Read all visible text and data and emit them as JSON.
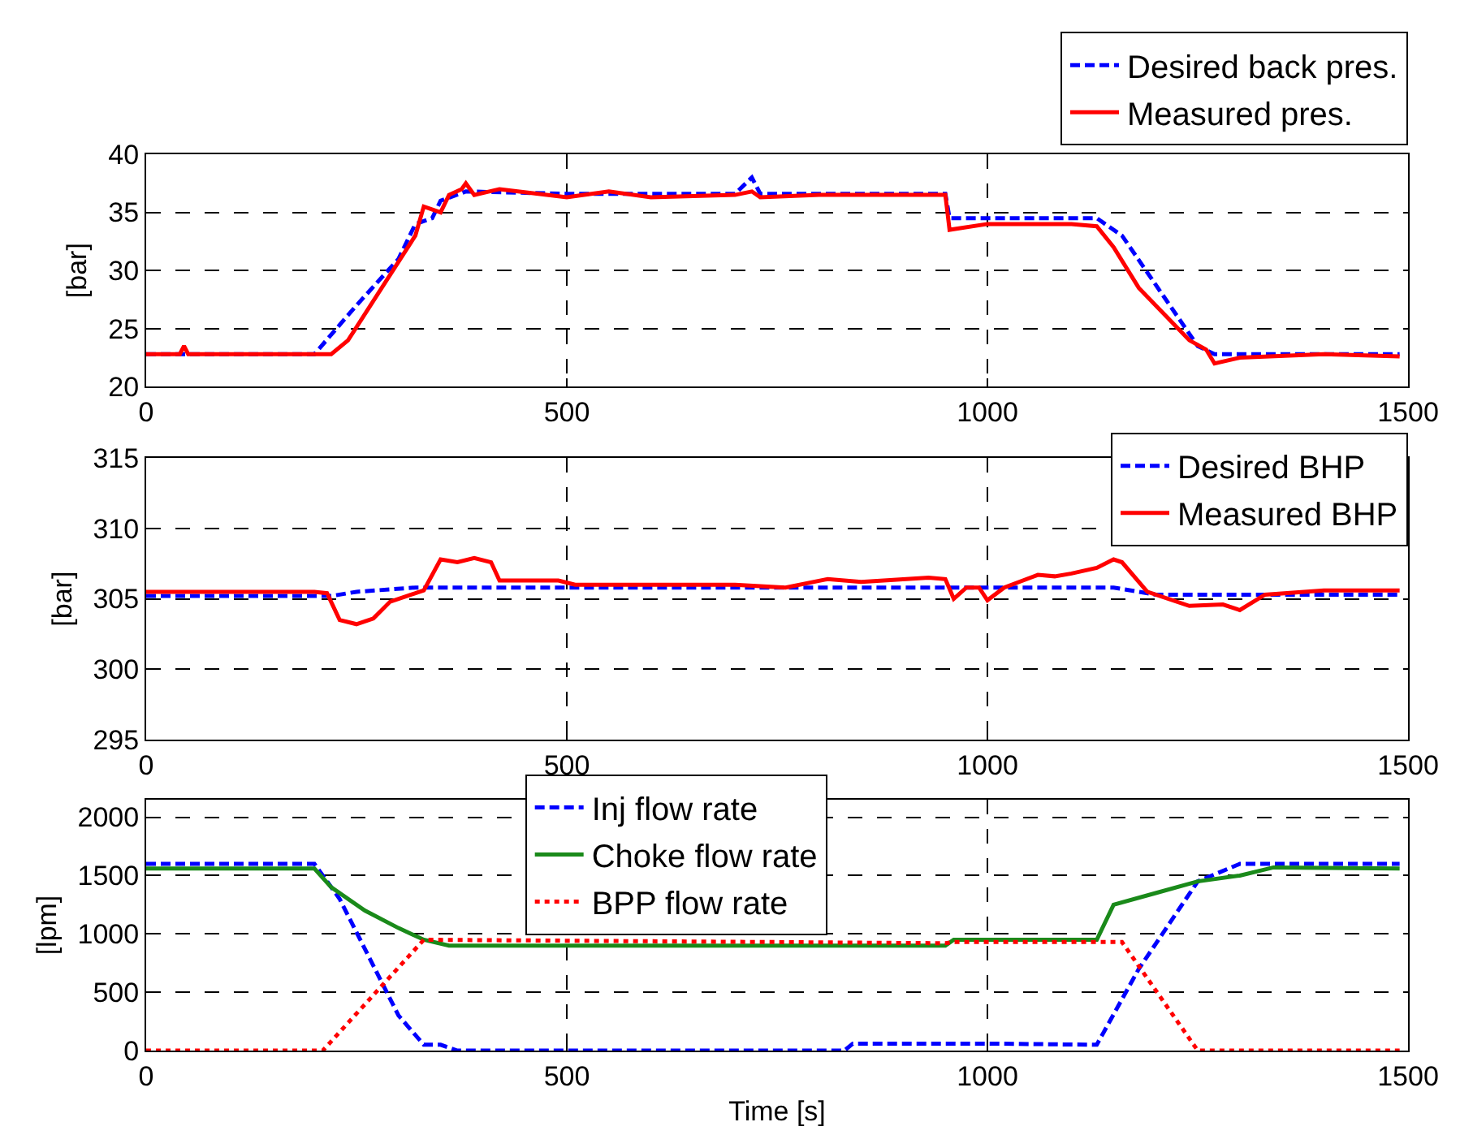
{
  "chart_data": [
    {
      "type": "line",
      "ylabel": "[bar]",
      "xlim": [
        0,
        1500
      ],
      "xticks": [
        0,
        500,
        1000,
        1500
      ],
      "ylim": [
        20,
        40
      ],
      "yticks": [
        20,
        25,
        30,
        35,
        40
      ],
      "grid": true,
      "legend": "top right",
      "marker": "none",
      "series": [
        {
          "name": "Desired back pres.",
          "color": "#0000ff",
          "line_style": "dashed",
          "x": [
            0,
            200,
            250,
            300,
            320,
            340,
            350,
            380,
            500,
            700,
            720,
            730,
            950,
            955,
            1130,
            1160,
            1250,
            1270,
            1490
          ],
          "values": [
            22.8,
            22.8,
            27,
            31,
            34,
            34.5,
            36,
            36.8,
            36.6,
            36.6,
            38,
            36.6,
            36.6,
            34.5,
            34.5,
            33,
            23.5,
            22.8,
            22.8
          ]
        },
        {
          "name": "Measured pres.",
          "color": "#ff0000",
          "line_style": "solid",
          "x": [
            0,
            40,
            45,
            50,
            200,
            220,
            240,
            280,
            320,
            330,
            350,
            360,
            375,
            380,
            390,
            420,
            500,
            550,
            600,
            700,
            720,
            730,
            800,
            950,
            955,
            1000,
            1100,
            1130,
            1150,
            1180,
            1240,
            1260,
            1270,
            1300,
            1400,
            1490
          ],
          "values": [
            22.8,
            22.8,
            23.5,
            22.8,
            22.8,
            22.8,
            24,
            28.5,
            33,
            35.5,
            35,
            36.5,
            37,
            37.5,
            36.5,
            37,
            36.3,
            36.8,
            36.3,
            36.5,
            36.8,
            36.3,
            36.5,
            36.5,
            33.5,
            34,
            34,
            33.8,
            32,
            28.5,
            24,
            23.2,
            22,
            22.5,
            22.8,
            22.6
          ]
        }
      ]
    },
    {
      "type": "line",
      "ylabel": "[bar]",
      "xlim": [
        0,
        1500
      ],
      "xticks": [
        0,
        500,
        1000,
        1500
      ],
      "ylim": [
        295,
        315
      ],
      "yticks": [
        295,
        300,
        305,
        310,
        315
      ],
      "grid": true,
      "legend": "top right",
      "marker": "none",
      "series": [
        {
          "name": "Desired BHP",
          "color": "#0000ff",
          "line_style": "dashed",
          "x": [
            0,
            220,
            250,
            320,
            1150,
            1200,
            1490
          ],
          "values": [
            305.2,
            305.2,
            305.5,
            305.8,
            305.8,
            305.3,
            305.3
          ]
        },
        {
          "name": "Measured BHP",
          "color": "#ff0000",
          "line_style": "solid",
          "x": [
            0,
            200,
            215,
            230,
            250,
            270,
            290,
            310,
            330,
            350,
            370,
            390,
            410,
            420,
            490,
            510,
            700,
            760,
            810,
            850,
            930,
            950,
            960,
            975,
            990,
            1000,
            1020,
            1060,
            1080,
            1100,
            1130,
            1150,
            1160,
            1190,
            1240,
            1280,
            1300,
            1330,
            1400,
            1490
          ],
          "values": [
            305.5,
            305.5,
            305.4,
            303.5,
            303.2,
            303.6,
            304.8,
            305.2,
            305.6,
            307.8,
            307.6,
            307.9,
            307.6,
            306.3,
            306.3,
            306.0,
            306.0,
            305.8,
            306.4,
            306.2,
            306.5,
            306.4,
            305.0,
            305.8,
            305.8,
            304.9,
            305.8,
            306.7,
            306.6,
            306.8,
            307.2,
            307.8,
            307.6,
            305.5,
            304.5,
            304.6,
            304.2,
            305.3,
            305.6,
            305.6
          ]
        }
      ]
    },
    {
      "type": "line",
      "xlabel": "Time [s]",
      "ylabel": "[lpm]",
      "xlim": [
        0,
        1500
      ],
      "xticks": [
        0,
        500,
        1000,
        1500
      ],
      "ylim": [
        0,
        2150
      ],
      "yticks": [
        0,
        500,
        1000,
        1500,
        2000
      ],
      "grid": true,
      "legend": "top",
      "marker": "none",
      "series": [
        {
          "name": "Inj flow rate",
          "color": "#0000ff",
          "line_style": "dashed",
          "x": [
            0,
            200,
            230,
            300,
            330,
            350,
            370,
            830,
            840,
            1000,
            1130,
            1180,
            1250,
            1300,
            1490
          ],
          "values": [
            1600,
            1600,
            1300,
            300,
            50,
            50,
            0,
            0,
            60,
            60,
            50,
            700,
            1450,
            1600,
            1600
          ]
        },
        {
          "name": "Choke flow rate",
          "color": "#1a8a1a",
          "line_style": "solid",
          "x": [
            0,
            200,
            220,
            260,
            300,
            330,
            360,
            950,
            960,
            1130,
            1150,
            1200,
            1250,
            1300,
            1340,
            1490
          ],
          "values": [
            1560,
            1560,
            1400,
            1200,
            1050,
            950,
            900,
            900,
            950,
            950,
            1250,
            1350,
            1450,
            1500,
            1570,
            1560
          ]
        },
        {
          "name": "BPP flow rate",
          "color": "#ff0000",
          "line_style": "dotted",
          "x": [
            0,
            210,
            330,
            950,
            960,
            1160,
            1250,
            1490
          ],
          "values": [
            0,
            0,
            950,
            920,
            930,
            930,
            0,
            0
          ]
        }
      ]
    }
  ]
}
